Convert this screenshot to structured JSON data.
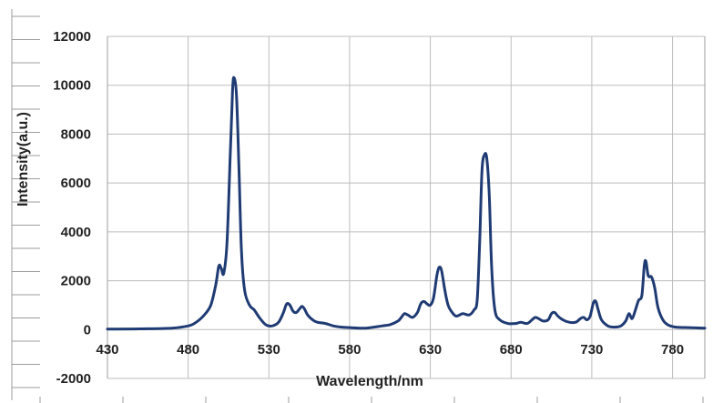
{
  "chart_data": {
    "type": "line",
    "xlabel": "Wavelength/nm",
    "ylabel": "Intensity(a.u.)",
    "xlim": [
      430,
      800
    ],
    "ylim": [
      -2000,
      12000
    ],
    "x_ticks": [
      430,
      480,
      530,
      580,
      630,
      680,
      730,
      780
    ],
    "y_ticks": [
      -2000,
      0,
      2000,
      4000,
      6000,
      8000,
      10000,
      12000
    ],
    "grid": true,
    "series": [
      {
        "color": "#1f3b73",
        "points": [
          [
            430,
            20
          ],
          [
            450,
            30
          ],
          [
            470,
            60
          ],
          [
            480,
            150
          ],
          [
            485,
            300
          ],
          [
            490,
            600
          ],
          [
            494,
            1000
          ],
          [
            497,
            1800
          ],
          [
            499,
            2600
          ],
          [
            500.5,
            2500
          ],
          [
            502,
            2300
          ],
          [
            504,
            3500
          ],
          [
            506,
            7000
          ],
          [
            507.5,
            9800
          ],
          [
            508.5,
            10300
          ],
          [
            510,
            9500
          ],
          [
            511.5,
            6500
          ],
          [
            513,
            3200
          ],
          [
            515,
            1600
          ],
          [
            518,
            1000
          ],
          [
            521,
            800
          ],
          [
            524,
            500
          ],
          [
            528,
            200
          ],
          [
            532,
            150
          ],
          [
            536,
            300
          ],
          [
            539,
            700
          ],
          [
            541,
            1050
          ],
          [
            543,
            1000
          ],
          [
            545,
            750
          ],
          [
            547,
            700
          ],
          [
            549,
            850
          ],
          [
            550.5,
            950
          ],
          [
            552,
            850
          ],
          [
            554,
            600
          ],
          [
            557,
            400
          ],
          [
            560,
            300
          ],
          [
            565,
            250
          ],
          [
            570,
            150
          ],
          [
            575,
            100
          ],
          [
            580,
            80
          ],
          [
            590,
            60
          ],
          [
            600,
            150
          ],
          [
            605,
            200
          ],
          [
            610,
            350
          ],
          [
            612,
            500
          ],
          [
            614,
            650
          ],
          [
            616,
            600
          ],
          [
            619,
            500
          ],
          [
            622,
            700
          ],
          [
            624,
            1050
          ],
          [
            626,
            1150
          ],
          [
            628,
            1050
          ],
          [
            630,
            1000
          ],
          [
            632,
            1300
          ],
          [
            634,
            2200
          ],
          [
            635.5,
            2550
          ],
          [
            637,
            2400
          ],
          [
            639,
            1600
          ],
          [
            641,
            1000
          ],
          [
            643,
            750
          ],
          [
            646,
            550
          ],
          [
            650,
            650
          ],
          [
            654,
            600
          ],
          [
            657,
            800
          ],
          [
            659,
            1200
          ],
          [
            660.5,
            3500
          ],
          [
            662,
            6500
          ],
          [
            663.5,
            7150
          ],
          [
            665,
            7000
          ],
          [
            666.5,
            5500
          ],
          [
            668,
            2500
          ],
          [
            670,
            800
          ],
          [
            673,
            400
          ],
          [
            678,
            250
          ],
          [
            683,
            250
          ],
          [
            686,
            300
          ],
          [
            690,
            250
          ],
          [
            693,
            400
          ],
          [
            695,
            500
          ],
          [
            697,
            450
          ],
          [
            700,
            350
          ],
          [
            703,
            400
          ],
          [
            705,
            650
          ],
          [
            707,
            700
          ],
          [
            709,
            550
          ],
          [
            712,
            400
          ],
          [
            716,
            300
          ],
          [
            720,
            300
          ],
          [
            723,
            450
          ],
          [
            725,
            500
          ],
          [
            727,
            400
          ],
          [
            729,
            550
          ],
          [
            731,
            1100
          ],
          [
            732.5,
            1150
          ],
          [
            734,
            800
          ],
          [
            736,
            400
          ],
          [
            740,
            150
          ],
          [
            744,
            100
          ],
          [
            748,
            150
          ],
          [
            751,
            350
          ],
          [
            753,
            650
          ],
          [
            755,
            450
          ],
          [
            757,
            800
          ],
          [
            759,
            1200
          ],
          [
            761,
            1400
          ],
          [
            762.5,
            2600
          ],
          [
            763.5,
            2800
          ],
          [
            765,
            2200
          ],
          [
            767,
            2150
          ],
          [
            769,
            1700
          ],
          [
            771,
            900
          ],
          [
            774,
            400
          ],
          [
            777,
            200
          ],
          [
            782,
            100
          ],
          [
            790,
            80
          ],
          [
            800,
            60
          ]
        ]
      }
    ]
  }
}
